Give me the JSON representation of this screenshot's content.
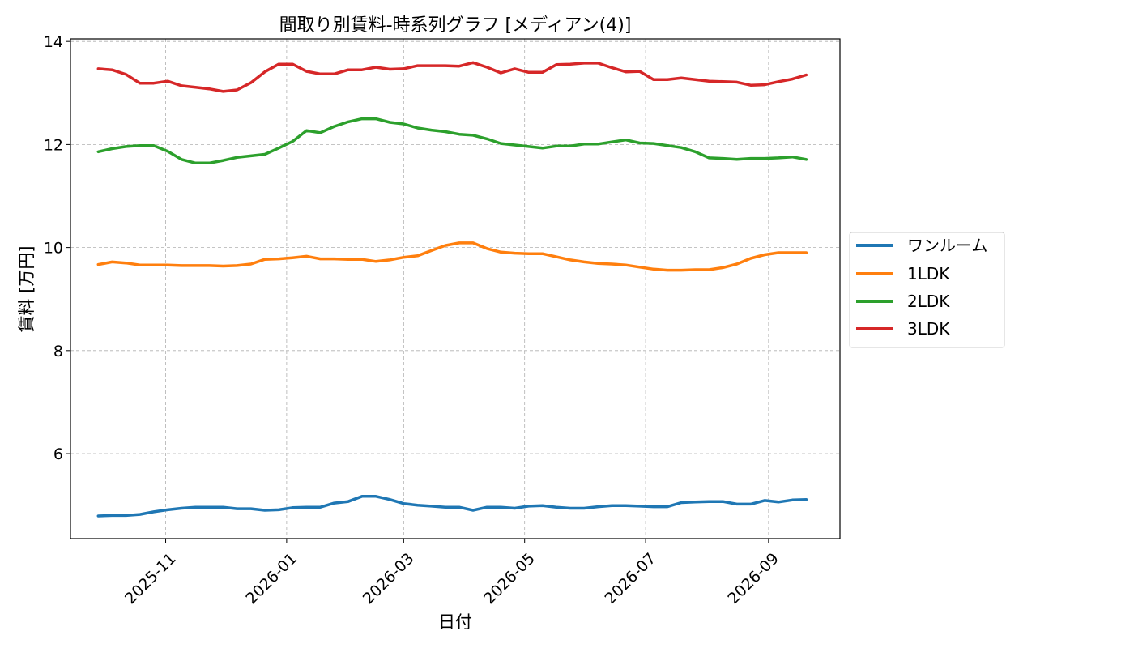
{
  "chart_data": {
    "type": "line",
    "title": "間取り別賃料-時系列グラフ [メディアン(4)]",
    "xlabel": "日付",
    "ylabel": "賃料 [万円]",
    "x": [
      "2025-09-28",
      "2025-10-05",
      "2025-10-12",
      "2025-10-19",
      "2025-10-26",
      "2025-11-02",
      "2025-11-09",
      "2025-11-16",
      "2025-11-23",
      "2025-11-30",
      "2025-12-07",
      "2025-12-14",
      "2025-12-21",
      "2025-12-28",
      "2026-01-04",
      "2026-01-11",
      "2026-01-18",
      "2026-01-25",
      "2026-02-01",
      "2026-02-08",
      "2026-02-15",
      "2026-02-22",
      "2026-03-01",
      "2026-03-08",
      "2026-03-15",
      "2026-03-22",
      "2026-03-29",
      "2026-04-05",
      "2026-04-12",
      "2026-04-19",
      "2026-04-26",
      "2026-05-03",
      "2026-05-10",
      "2026-05-17",
      "2026-05-24",
      "2026-05-31",
      "2026-06-07",
      "2026-06-14",
      "2026-06-21",
      "2026-06-28",
      "2026-07-05",
      "2026-07-12",
      "2026-07-19",
      "2026-07-26",
      "2026-08-02",
      "2026-08-09",
      "2026-08-16",
      "2026-08-23",
      "2026-08-30",
      "2026-09-06",
      "2026-09-13",
      "2026-09-20"
    ],
    "xticks": [
      "2025-11",
      "2026-01",
      "2026-03",
      "2026-05",
      "2026-07",
      "2026-09"
    ],
    "xtick_dates": [
      "2025-11-01",
      "2026-01-01",
      "2026-03-01",
      "2026-05-01",
      "2026-07-01",
      "2026-09-01"
    ],
    "xlim": [
      "2025-09-14",
      "2026-10-07"
    ],
    "yticks": [
      6,
      8,
      10,
      12,
      14
    ],
    "ylim": [
      4.35,
      14.05
    ],
    "grid": true,
    "legend_position": "center-right (outside)",
    "series": [
      {
        "name": "ワンルーム",
        "color": "#1f77b4",
        "values": [
          4.79,
          4.8,
          4.8,
          4.82,
          4.87,
          4.91,
          4.94,
          4.96,
          4.96,
          4.96,
          4.93,
          4.93,
          4.9,
          4.91,
          4.95,
          4.96,
          4.96,
          5.04,
          5.07,
          5.17,
          5.17,
          5.11,
          5.03,
          5.0,
          4.98,
          4.96,
          4.96,
          4.9,
          4.96,
          4.96,
          4.94,
          4.98,
          4.99,
          4.96,
          4.94,
          4.94,
          4.97,
          4.99,
          4.99,
          4.98,
          4.97,
          4.97,
          5.05,
          5.06,
          5.07,
          5.07,
          5.02,
          5.02,
          5.09,
          5.06,
          5.1,
          5.11
        ]
      },
      {
        "name": "1LDK",
        "color": "#ff7f0e",
        "values": [
          9.67,
          9.72,
          9.7,
          9.66,
          9.66,
          9.66,
          9.65,
          9.65,
          9.65,
          9.64,
          9.65,
          9.68,
          9.77,
          9.78,
          9.8,
          9.83,
          9.78,
          9.78,
          9.77,
          9.77,
          9.73,
          9.76,
          9.81,
          9.84,
          9.94,
          10.04,
          10.09,
          10.09,
          9.98,
          9.91,
          9.89,
          9.88,
          9.88,
          9.82,
          9.76,
          9.72,
          9.69,
          9.68,
          9.66,
          9.62,
          9.58,
          9.56,
          9.56,
          9.57,
          9.57,
          9.61,
          9.68,
          9.79,
          9.86,
          9.9,
          9.9,
          9.9
        ]
      },
      {
        "name": "2LDK",
        "color": "#2ca02c",
        "values": [
          11.86,
          11.92,
          11.96,
          11.98,
          11.98,
          11.87,
          11.71,
          11.64,
          11.64,
          11.69,
          11.75,
          11.78,
          11.81,
          11.93,
          12.06,
          12.27,
          12.23,
          12.35,
          12.44,
          12.5,
          12.5,
          12.43,
          12.4,
          12.32,
          12.28,
          12.25,
          12.2,
          12.18,
          12.11,
          12.02,
          11.99,
          11.96,
          11.93,
          11.97,
          11.97,
          12.01,
          12.01,
          12.05,
          12.09,
          12.03,
          12.02,
          11.98,
          11.94,
          11.86,
          11.74,
          11.73,
          11.71,
          11.73,
          11.73,
          11.74,
          11.76,
          11.71
        ]
      },
      {
        "name": "3LDK",
        "color": "#d62728",
        "values": [
          13.47,
          13.45,
          13.36,
          13.19,
          13.19,
          13.23,
          13.14,
          13.11,
          13.08,
          13.03,
          13.06,
          13.2,
          13.41,
          13.56,
          13.56,
          13.42,
          13.37,
          13.37,
          13.45,
          13.45,
          13.5,
          13.46,
          13.47,
          13.53,
          13.53,
          13.53,
          13.52,
          13.59,
          13.5,
          13.39,
          13.47,
          13.4,
          13.4,
          13.55,
          13.56,
          13.58,
          13.58,
          13.49,
          13.41,
          13.42,
          13.26,
          13.26,
          13.29,
          13.26,
          13.23,
          13.22,
          13.21,
          13.15,
          13.16,
          13.22,
          13.27,
          13.35
        ]
      }
    ]
  }
}
